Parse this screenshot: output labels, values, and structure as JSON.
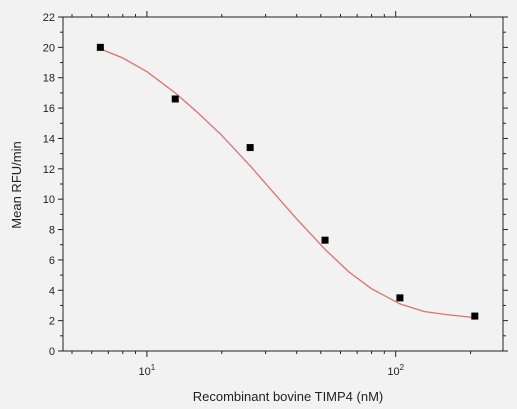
{
  "chart_data": {
    "type": "scatter",
    "title": "",
    "xlabel": "Recombinant bovine TIMP4 (nM)",
    "ylabel": "Mean RFU/min",
    "xscale": "log",
    "xlim": [
      4.6,
      270
    ],
    "ylim": [
      0,
      22
    ],
    "yticks": [
      0,
      2,
      4,
      6,
      8,
      10,
      12,
      14,
      16,
      18,
      20,
      22
    ],
    "xticks": [
      {
        "value": 10,
        "base": "10",
        "exp": "1"
      },
      {
        "value": 100,
        "base": "10",
        "exp": "2"
      }
    ],
    "grid": false,
    "legend": "none",
    "series": [
      {
        "marker": "square",
        "color": "#000000",
        "x": [
          6.5,
          13,
          26,
          52,
          104,
          208
        ],
        "y": [
          20.0,
          16.6,
          13.4,
          7.3,
          3.5,
          2.3
        ]
      }
    ],
    "fit_curve": {
      "color": "#e0706e",
      "x": [
        6.5,
        8,
        10,
        13,
        16,
        20,
        26,
        32,
        40,
        52,
        65,
        80,
        104,
        130,
        160,
        208
      ],
      "y": [
        19.9,
        19.3,
        18.4,
        17.0,
        15.7,
        14.2,
        12.2,
        10.5,
        8.7,
        6.7,
        5.2,
        4.1,
        3.1,
        2.6,
        2.4,
        2.2
      ]
    }
  }
}
